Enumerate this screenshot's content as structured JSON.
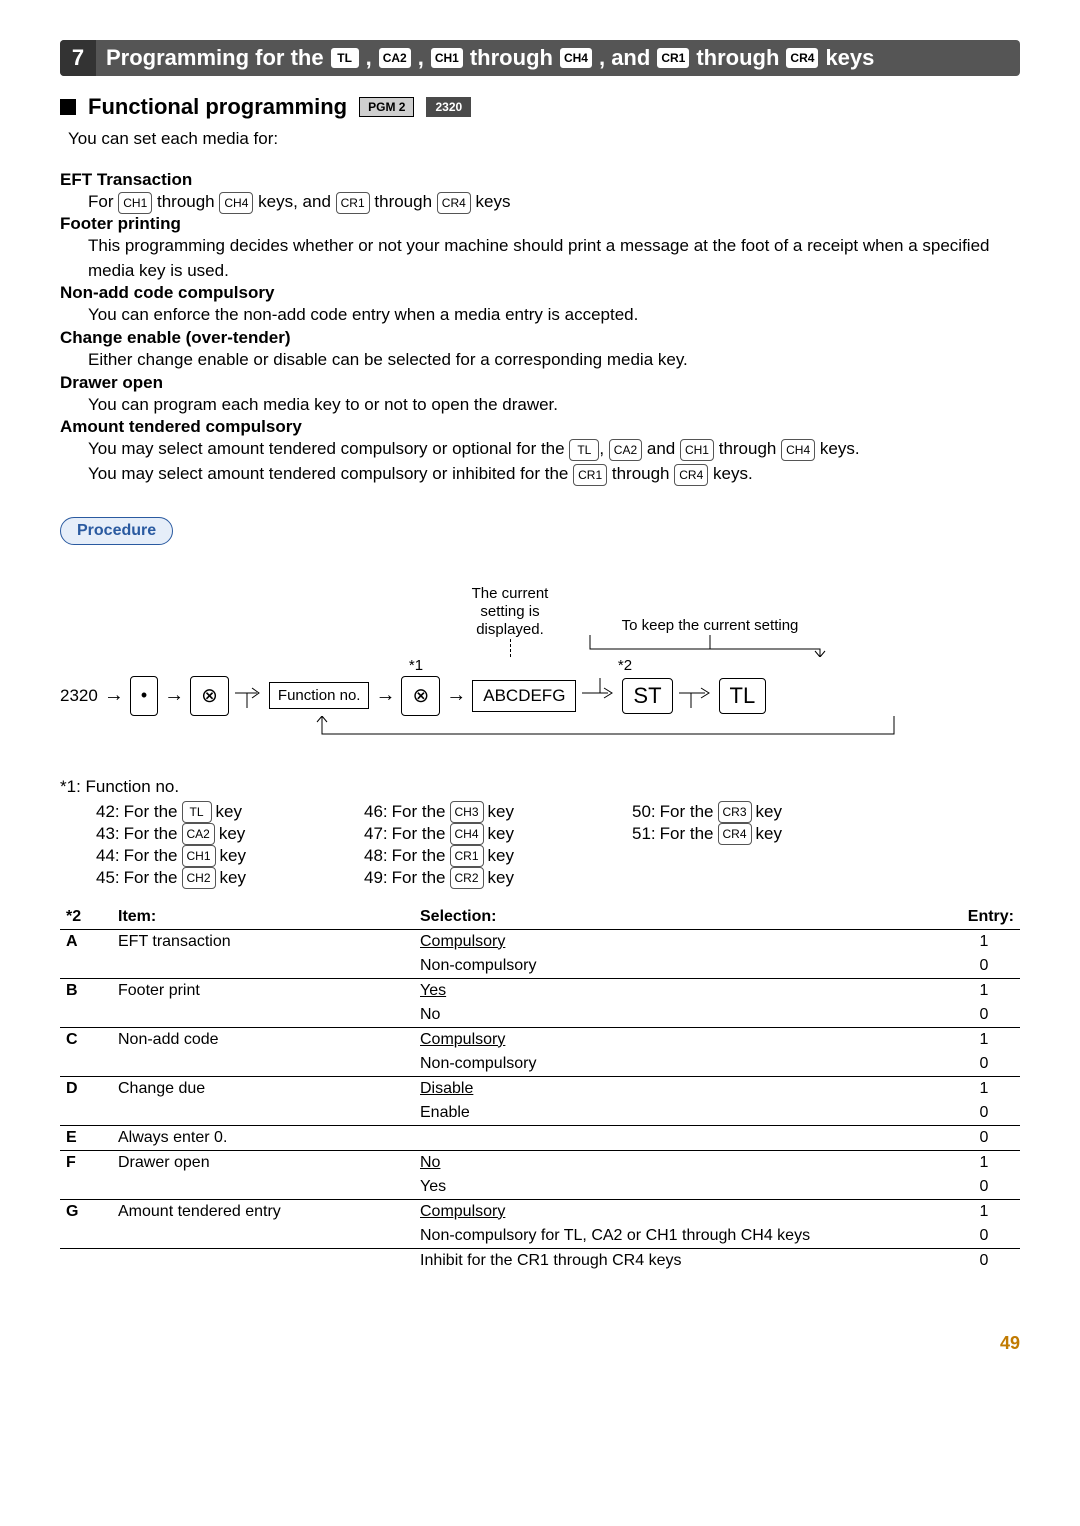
{
  "section": {
    "number": "7",
    "title_parts": {
      "p1": "Programming for the",
      "p2": "through",
      "p3": ", and",
      "p4": "through",
      "p5": "keys"
    },
    "keys": {
      "tl": "TL",
      "ca2": "CA2",
      "ch1": "CH1",
      "ch4": "CH4",
      "cr1": "CR1",
      "cr4": "CR4",
      "ch2": "CH2",
      "ch3": "CH3",
      "cr2": "CR2",
      "cr3": "CR3",
      "dot": "•",
      "ox": "⊗",
      "st": "ST"
    }
  },
  "sub": {
    "title": "Functional programming",
    "pgm": "PGM 2",
    "code": "2320"
  },
  "intro": "You can set each media for:",
  "defs": {
    "eft": {
      "title": "EFT Transaction",
      "line_a": "For",
      "line_b": "through",
      "line_c": "keys, and",
      "line_d": "through",
      "line_e": "keys"
    },
    "footer": {
      "title": "Footer printing",
      "body": "This programming decides whether or not your machine should print a message at the foot of a receipt when a specified media key is used."
    },
    "nonadd": {
      "title": "Non-add code compulsory",
      "body": "You can enforce the non-add code entry when a media entry is accepted."
    },
    "change": {
      "title": "Change enable (over-tender)",
      "body": "Either change enable or disable can be selected for a corresponding media key."
    },
    "drawer": {
      "title": "Drawer open",
      "body": "You can program each media key to or not to open the drawer."
    },
    "amount": {
      "title": "Amount tendered compulsory",
      "l1a": "You may select amount tendered compulsory or optional for the",
      "l1b": "and",
      "l1c": "through",
      "l1d": "keys.",
      "l2a": "You may select amount tendered compulsory or inhibited for the",
      "l2b": "through",
      "l2c": "keys."
    }
  },
  "procedure": {
    "label": "Procedure",
    "code": "2320",
    "star1": "*1",
    "star2": "*2",
    "funcno": "Function no.",
    "abcdefg": "ABCDEFG",
    "annot1_l1": "The current",
    "annot1_l2": "setting is",
    "annot1_l3": "displayed.",
    "annot2": "To keep the current setting"
  },
  "fn": {
    "head": "*1:  Function no.",
    "rows": [
      {
        "n": "42:",
        "lbl": "For the",
        "k": "TL",
        "suf": "key"
      },
      {
        "n": "43:",
        "lbl": "For the",
        "k": "CA2",
        "suf": "key"
      },
      {
        "n": "44:",
        "lbl": "For the",
        "k": "CH1",
        "suf": "key"
      },
      {
        "n": "45:",
        "lbl": "For the",
        "k": "CH2",
        "suf": "key"
      },
      {
        "n": "46:",
        "lbl": "For the",
        "k": "CH3",
        "suf": "key"
      },
      {
        "n": "47:",
        "lbl": "For the",
        "k": "CH4",
        "suf": "key"
      },
      {
        "n": "48:",
        "lbl": "For the",
        "k": "CR1",
        "suf": "key"
      },
      {
        "n": "49:",
        "lbl": "For the",
        "k": "CR2",
        "suf": "key"
      },
      {
        "n": "50:",
        "lbl": "For the",
        "k": "CR3",
        "suf": "key"
      },
      {
        "n": "51:",
        "lbl": "For the",
        "k": "CR4",
        "suf": "key"
      }
    ]
  },
  "table": {
    "star": "*2",
    "h_item": "Item:",
    "h_sel": "Selection:",
    "h_entry": "Entry:",
    "rows": [
      {
        "letter": "A",
        "item": "EFT transaction",
        "sel": "Compulsory",
        "entry": "1",
        "u": true,
        "border": false
      },
      {
        "letter": "",
        "item": "",
        "sel": "Non-compulsory",
        "entry": "0",
        "u": false,
        "border": true
      },
      {
        "letter": "B",
        "item": "Footer print",
        "sel": "Yes",
        "entry": "1",
        "u": true,
        "border": false
      },
      {
        "letter": "",
        "item": "",
        "sel": "No",
        "entry": "0",
        "u": false,
        "border": true
      },
      {
        "letter": "C",
        "item": "Non-add code",
        "sel": "Compulsory",
        "entry": "1",
        "u": true,
        "border": false
      },
      {
        "letter": "",
        "item": "",
        "sel": "Non-compulsory",
        "entry": "0",
        "u": false,
        "border": true
      },
      {
        "letter": "D",
        "item": "Change due",
        "sel": "Disable",
        "entry": "1",
        "u": true,
        "border": false
      },
      {
        "letter": "",
        "item": "",
        "sel": "Enable",
        "entry": "0",
        "u": false,
        "border": true
      },
      {
        "letter": "E",
        "item": "Always enter 0.",
        "sel": "",
        "entry": "0",
        "u": false,
        "border": true
      },
      {
        "letter": "F",
        "item": "Drawer open",
        "sel": "No",
        "entry": "1",
        "u": true,
        "border": false
      },
      {
        "letter": "",
        "item": "",
        "sel": "Yes",
        "entry": "0",
        "u": false,
        "border": true
      },
      {
        "letter": "G",
        "item": "Amount tendered entry",
        "sel": "Compulsory",
        "entry": "1",
        "u": true,
        "border": false
      },
      {
        "letter": "",
        "item": "",
        "sel": "Non-compulsory for TL, CA2 or CH1 through  CH4 keys",
        "entry": "0",
        "u": false,
        "border": true
      },
      {
        "letter": "",
        "item": "",
        "sel": "Inhibit for the CR1 through CR4 keys",
        "entry": "0",
        "u": false,
        "border": false
      }
    ]
  },
  "page_number": "49"
}
